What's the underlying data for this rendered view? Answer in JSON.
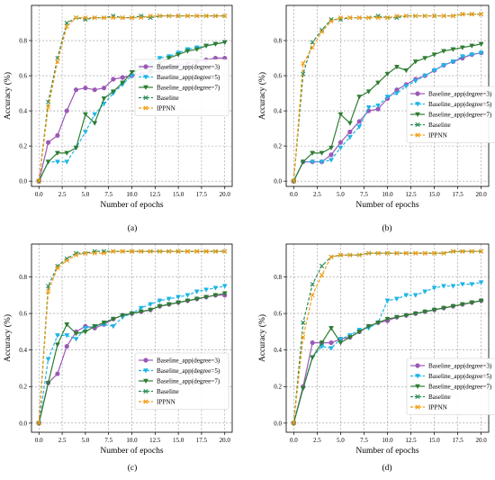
{
  "figure": {
    "panel_labels": [
      "(a)",
      "(b)",
      "(c)",
      "(d)"
    ]
  },
  "chart_data": [
    {
      "type": "line",
      "panel": "(a)",
      "xlabel": "Number of epochs",
      "ylabel": "Accuracy (%)",
      "xlim": [
        -0.8,
        20.8
      ],
      "ylim": [
        -0.03,
        1.0
      ],
      "xticks": [
        0.0,
        2.5,
        5.0,
        7.5,
        10.0,
        12.5,
        15.0,
        17.5,
        20.0
      ],
      "yticks": [
        0.0,
        0.2,
        0.4,
        0.6,
        0.8
      ],
      "grid": true,
      "legend_position": "center-right",
      "x": [
        0,
        1,
        2,
        3,
        4,
        5,
        6,
        7,
        8,
        9,
        10,
        11,
        12,
        13,
        14,
        15,
        16,
        17,
        18,
        19,
        20
      ],
      "series": [
        {
          "name": "Baseline_app(degree=3)",
          "color": "#9b59b6",
          "marker": "circle",
          "linestyle": "solid",
          "values": [
            0,
            0.22,
            0.26,
            0.4,
            0.52,
            0.53,
            0.52,
            0.53,
            0.58,
            0.59,
            0.6,
            0.61,
            0.62,
            0.63,
            0.65,
            0.66,
            0.67,
            0.68,
            0.69,
            0.7,
            0.7
          ]
        },
        {
          "name": "Baseline_app(degree=5)",
          "color": "#1fb5e6",
          "marker": "triangle-down",
          "linestyle": "dashed",
          "values": [
            0,
            0.11,
            0.11,
            0.11,
            0.19,
            0.28,
            0.38,
            0.44,
            0.5,
            0.55,
            0.6,
            0.65,
            0.67,
            0.7,
            0.71,
            0.73,
            0.75,
            0.76,
            0.77,
            0.78,
            0.79
          ]
        },
        {
          "name": "Baseline_app(degree=7)",
          "color": "#2e7d32",
          "marker": "triangle-down",
          "linestyle": "solid",
          "values": [
            0,
            0.11,
            0.16,
            0.16,
            0.19,
            0.38,
            0.33,
            0.47,
            0.51,
            0.56,
            0.62,
            0.64,
            0.63,
            0.67,
            0.7,
            0.72,
            0.74,
            0.75,
            0.77,
            0.78,
            0.79
          ]
        },
        {
          "name": "Baseline",
          "color": "#2e8b57",
          "marker": "x",
          "linestyle": "dashed",
          "values": [
            0,
            0.45,
            0.7,
            0.9,
            0.93,
            0.92,
            0.93,
            0.93,
            0.94,
            0.93,
            0.93,
            0.94,
            0.93,
            0.94,
            0.94,
            0.94,
            0.94,
            0.94,
            0.94,
            0.94,
            0.94
          ]
        },
        {
          "name": "IPPNN",
          "color": "#f39c12",
          "marker": "x",
          "linestyle": "dashed",
          "values": [
            0,
            0.42,
            0.68,
            0.88,
            0.93,
            0.93,
            0.93,
            0.93,
            0.93,
            0.93,
            0.93,
            0.93,
            0.94,
            0.94,
            0.94,
            0.94,
            0.94,
            0.94,
            0.94,
            0.94,
            0.94
          ]
        }
      ]
    },
    {
      "type": "line",
      "panel": "(b)",
      "xlabel": "Number of epochs",
      "ylabel": "Accuracy (%)",
      "xlim": [
        -0.8,
        20.8
      ],
      "ylim": [
        -0.03,
        1.0
      ],
      "xticks": [
        0.0,
        2.5,
        5.0,
        7.5,
        10.0,
        12.5,
        15.0,
        17.5,
        20.0
      ],
      "yticks": [
        0.0,
        0.2,
        0.4,
        0.6,
        0.8
      ],
      "grid": true,
      "legend_position": "center-right",
      "x": [
        0,
        1,
        2,
        3,
        4,
        5,
        6,
        7,
        8,
        9,
        10,
        11,
        12,
        13,
        14,
        15,
        16,
        17,
        18,
        19,
        20
      ],
      "series": [
        {
          "name": "Baseline_app(degree=3)",
          "color": "#9b59b6",
          "marker": "circle",
          "linestyle": "solid",
          "values": [
            0,
            0.11,
            0.11,
            0.11,
            0.15,
            0.22,
            0.28,
            0.34,
            0.4,
            0.41,
            0.47,
            0.52,
            0.55,
            0.58,
            0.6,
            0.63,
            0.66,
            0.68,
            0.7,
            0.72,
            0.73
          ]
        },
        {
          "name": "Baseline_app(degree=5)",
          "color": "#1fb5e6",
          "marker": "triangle-down",
          "linestyle": "dashed",
          "values": [
            0,
            0.11,
            0.11,
            0.11,
            0.12,
            0.19,
            0.25,
            0.31,
            0.42,
            0.43,
            0.48,
            0.5,
            0.54,
            0.57,
            0.6,
            0.63,
            0.66,
            0.68,
            0.71,
            0.72,
            0.73
          ]
        },
        {
          "name": "Baseline_app(degree=7)",
          "color": "#2e7d32",
          "marker": "triangle-down",
          "linestyle": "solid",
          "values": [
            0,
            0.11,
            0.16,
            0.16,
            0.19,
            0.38,
            0.33,
            0.48,
            0.51,
            0.56,
            0.61,
            0.65,
            0.63,
            0.68,
            0.7,
            0.72,
            0.74,
            0.75,
            0.76,
            0.77,
            0.78
          ]
        },
        {
          "name": "Baseline",
          "color": "#2e8b57",
          "marker": "x",
          "linestyle": "dashed",
          "values": [
            0,
            0.61,
            0.79,
            0.86,
            0.92,
            0.92,
            0.93,
            0.93,
            0.93,
            0.94,
            0.93,
            0.93,
            0.94,
            0.94,
            0.94,
            0.94,
            0.94,
            0.94,
            0.95,
            0.95,
            0.95
          ]
        },
        {
          "name": "IPPNN",
          "color": "#f39c12",
          "marker": "x",
          "linestyle": "dashed",
          "values": [
            0,
            0.67,
            0.76,
            0.85,
            0.91,
            0.93,
            0.93,
            0.93,
            0.93,
            0.93,
            0.93,
            0.94,
            0.94,
            0.94,
            0.94,
            0.94,
            0.94,
            0.94,
            0.95,
            0.95,
            0.95
          ]
        }
      ]
    },
    {
      "type": "line",
      "panel": "(c)",
      "xlabel": "Number of epochs",
      "ylabel": "Accuracy (%)",
      "xlim": [
        -0.8,
        20.8
      ],
      "ylim": [
        -0.05,
        0.98
      ],
      "xticks": [
        0.0,
        2.5,
        5.0,
        7.5,
        10.0,
        12.5,
        15.0,
        17.5,
        20.0
      ],
      "yticks": [
        0.0,
        0.2,
        0.4,
        0.6,
        0.8
      ],
      "grid": true,
      "legend_position": "lower-right",
      "x": [
        0,
        1,
        2,
        3,
        4,
        5,
        6,
        7,
        8,
        9,
        10,
        11,
        12,
        13,
        14,
        15,
        16,
        17,
        18,
        19,
        20
      ],
      "series": [
        {
          "name": "Baseline_app(degree=3)",
          "color": "#9b59b6",
          "marker": "circle",
          "linestyle": "solid",
          "values": [
            0,
            0.22,
            0.27,
            0.42,
            0.5,
            0.53,
            0.52,
            0.54,
            0.57,
            0.59,
            0.6,
            0.61,
            0.62,
            0.64,
            0.65,
            0.66,
            0.67,
            0.68,
            0.69,
            0.7,
            0.7
          ]
        },
        {
          "name": "Baseline_app(degree=5)",
          "color": "#1fb5e6",
          "marker": "triangle-down",
          "linestyle": "dashed",
          "values": [
            0,
            0.35,
            0.48,
            0.48,
            0.46,
            0.52,
            0.53,
            0.54,
            0.53,
            0.58,
            0.6,
            0.63,
            0.65,
            0.67,
            0.68,
            0.69,
            0.7,
            0.72,
            0.73,
            0.74,
            0.75
          ]
        },
        {
          "name": "Baseline_app(degree=7)",
          "color": "#2e7d32",
          "marker": "triangle-down",
          "linestyle": "solid",
          "values": [
            0,
            0.22,
            0.43,
            0.54,
            0.49,
            0.5,
            0.53,
            0.55,
            0.57,
            0.59,
            0.6,
            0.61,
            0.62,
            0.64,
            0.65,
            0.66,
            0.67,
            0.68,
            0.69,
            0.7,
            0.71
          ]
        },
        {
          "name": "Baseline",
          "color": "#2e8b57",
          "marker": "x",
          "linestyle": "dashed",
          "values": [
            0,
            0.75,
            0.86,
            0.9,
            0.93,
            0.93,
            0.94,
            0.94,
            0.94,
            0.94,
            0.94,
            0.94,
            0.94,
            0.94,
            0.94,
            0.94,
            0.94,
            0.94,
            0.94,
            0.94,
            0.94
          ]
        },
        {
          "name": "IPPNN",
          "color": "#f39c12",
          "marker": "x",
          "linestyle": "dashed",
          "values": [
            0,
            0.72,
            0.85,
            0.89,
            0.92,
            0.93,
            0.93,
            0.93,
            0.94,
            0.94,
            0.94,
            0.94,
            0.94,
            0.94,
            0.94,
            0.94,
            0.94,
            0.94,
            0.94,
            0.94,
            0.94
          ]
        }
      ]
    },
    {
      "type": "line",
      "panel": "(d)",
      "xlabel": "Number of epochs",
      "ylabel": "Accuracy (%)",
      "xlim": [
        -0.8,
        20.8
      ],
      "ylim": [
        -0.05,
        0.98
      ],
      "xticks": [
        0.0,
        2.5,
        5.0,
        7.5,
        10.0,
        12.5,
        15.0,
        17.5,
        20.0
      ],
      "yticks": [
        0.0,
        0.2,
        0.4,
        0.6,
        0.8
      ],
      "grid": true,
      "legend_position": "lower-right",
      "x": [
        0,
        1,
        2,
        3,
        4,
        5,
        6,
        7,
        8,
        9,
        10,
        11,
        12,
        13,
        14,
        15,
        16,
        17,
        18,
        19,
        20
      ],
      "series": [
        {
          "name": "Baseline_app(degree=3)",
          "color": "#9b59b6",
          "marker": "circle",
          "linestyle": "solid",
          "values": [
            0,
            0.2,
            0.44,
            0.44,
            0.44,
            0.46,
            0.47,
            0.5,
            0.53,
            0.55,
            0.56,
            0.58,
            0.59,
            0.6,
            0.61,
            0.62,
            0.63,
            0.64,
            0.65,
            0.66,
            0.67
          ]
        },
        {
          "name": "Baseline_app(degree=5)",
          "color": "#1fb5e6",
          "marker": "triangle-down",
          "linestyle": "dashed",
          "values": [
            0,
            0.19,
            0.36,
            0.42,
            0.41,
            0.46,
            0.48,
            0.51,
            0.52,
            0.55,
            0.67,
            0.68,
            0.7,
            0.7,
            0.72,
            0.74,
            0.75,
            0.75,
            0.76,
            0.76,
            0.77
          ]
        },
        {
          "name": "Baseline_app(degree=7)",
          "color": "#2e7d32",
          "marker": "triangle-down",
          "linestyle": "solid",
          "values": [
            0,
            0.19,
            0.36,
            0.44,
            0.52,
            0.44,
            0.47,
            0.5,
            0.53,
            0.55,
            0.57,
            0.58,
            0.59,
            0.6,
            0.61,
            0.62,
            0.63,
            0.64,
            0.65,
            0.66,
            0.67
          ]
        },
        {
          "name": "Baseline",
          "color": "#2e8b57",
          "marker": "x",
          "linestyle": "dashed",
          "values": [
            0,
            0.55,
            0.76,
            0.86,
            0.91,
            0.92,
            0.92,
            0.92,
            0.93,
            0.93,
            0.93,
            0.93,
            0.93,
            0.93,
            0.93,
            0.93,
            0.93,
            0.94,
            0.94,
            0.94,
            0.94
          ]
        },
        {
          "name": "IPPNN",
          "color": "#f39c12",
          "marker": "x",
          "linestyle": "dashed",
          "values": [
            0,
            0.47,
            0.7,
            0.81,
            0.91,
            0.92,
            0.92,
            0.92,
            0.93,
            0.93,
            0.93,
            0.93,
            0.93,
            0.93,
            0.93,
            0.93,
            0.93,
            0.94,
            0.94,
            0.94,
            0.94
          ]
        }
      ]
    }
  ]
}
